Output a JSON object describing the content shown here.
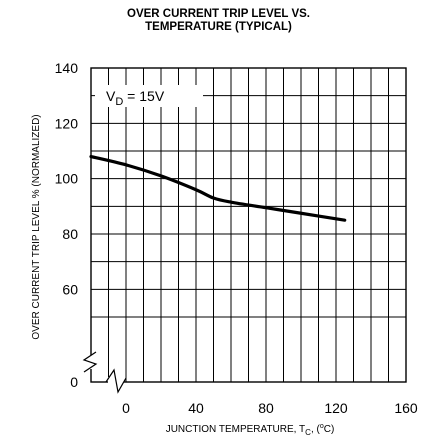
{
  "chart_data": {
    "type": "line",
    "title_line1": "OVER CURRENT TRIP LEVEL VS.",
    "title_line2": "TEMPERATURE (TYPICAL)",
    "xlabel": "JUNCTION TEMPERATURE, T",
    "xlabel_sub": "C",
    "xlabel_unit": ", (",
    "xlabel_deg": "o",
    "xlabel_close": "C)",
    "ylabel": "OVER CURRENT TRIP LEVEL % (NORMALIZED)",
    "annotation_main": "V",
    "annotation_sub": "D",
    "annotation_rest": " = 15V",
    "x_ticks": [
      "0",
      "40",
      "80",
      "120",
      "160"
    ],
    "y_ticks": [
      "140",
      "120",
      "100",
      "80",
      "60",
      "0"
    ],
    "xlim": [
      -20,
      160
    ],
    "ylim_upper": [
      50,
      140
    ],
    "y_break": true,
    "x_break": true,
    "grid": true,
    "series": [
      {
        "x": [
          -20,
          0,
          20,
          40,
          50,
          60,
          80,
          100,
          125
        ],
        "y": [
          108,
          105,
          101,
          96,
          93,
          91.5,
          89.5,
          87.5,
          85
        ]
      }
    ]
  }
}
